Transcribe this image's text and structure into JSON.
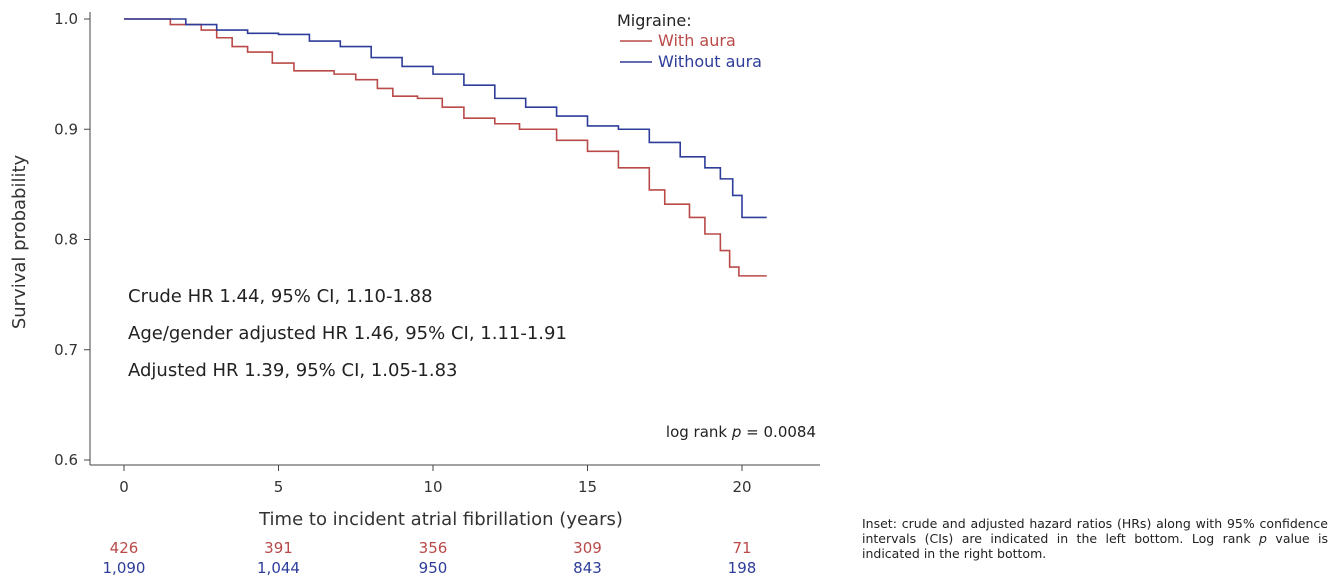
{
  "chart_data": {
    "type": "line",
    "xlabel": "Time to incident atrial fibrillation (years)",
    "ylabel": "Survival probability",
    "xlim": [
      -2.3,
      22.5
    ],
    "ylim": [
      0.6,
      1.0
    ],
    "x_ticks": [
      "0",
      "5",
      "10",
      "15",
      "20"
    ],
    "y_ticks": [
      "0.6",
      "0.7",
      "0.8",
      "0.9",
      "1.0"
    ],
    "legend": {
      "title": "Migraine:",
      "placement": "top-right"
    },
    "series": [
      {
        "name": "With aura",
        "color": "#b94a48",
        "points": [
          [
            0,
            1.0
          ],
          [
            1,
            1.0
          ],
          [
            1.5,
            0.995
          ],
          [
            2.5,
            0.99
          ],
          [
            3,
            0.983
          ],
          [
            3.5,
            0.975
          ],
          [
            4,
            0.97
          ],
          [
            4.8,
            0.96
          ],
          [
            5.5,
            0.953
          ],
          [
            6.8,
            0.95
          ],
          [
            7.5,
            0.945
          ],
          [
            8.2,
            0.937
          ],
          [
            8.7,
            0.93
          ],
          [
            9.5,
            0.928
          ],
          [
            10.3,
            0.92
          ],
          [
            11,
            0.91
          ],
          [
            12,
            0.905
          ],
          [
            12.8,
            0.9
          ],
          [
            14,
            0.89
          ],
          [
            15,
            0.88
          ],
          [
            16,
            0.865
          ],
          [
            17,
            0.845
          ],
          [
            17.5,
            0.832
          ],
          [
            18.3,
            0.82
          ],
          [
            18.8,
            0.805
          ],
          [
            19.3,
            0.79
          ],
          [
            19.6,
            0.775
          ],
          [
            19.9,
            0.767
          ],
          [
            20.8,
            0.767
          ]
        ]
      },
      {
        "name": "Without aura",
        "color": "#2e3d99",
        "points": [
          [
            0,
            1.0
          ],
          [
            1,
            1.0
          ],
          [
            2,
            0.995
          ],
          [
            3,
            0.99
          ],
          [
            4,
            0.987
          ],
          [
            5,
            0.986
          ],
          [
            6,
            0.98
          ],
          [
            7,
            0.975
          ],
          [
            8,
            0.965
          ],
          [
            9,
            0.957
          ],
          [
            10,
            0.95
          ],
          [
            11,
            0.94
          ],
          [
            12,
            0.928
          ],
          [
            13,
            0.92
          ],
          [
            14,
            0.912
          ],
          [
            15,
            0.903
          ],
          [
            16,
            0.9
          ],
          [
            17,
            0.888
          ],
          [
            18,
            0.875
          ],
          [
            18.8,
            0.865
          ],
          [
            19.3,
            0.855
          ],
          [
            19.7,
            0.84
          ],
          [
            20,
            0.82
          ],
          [
            20.8,
            0.82
          ]
        ]
      }
    ],
    "annotations": [
      "Crude HR 1.44, 95% CI, 1.10-1.88",
      "Age/gender adjusted HR 1.46, 95% CI, 1.11-1.91",
      "Adjusted HR 1.39, 95% CI, 1.05-1.83"
    ],
    "log_rank": {
      "prefix": "log rank ",
      "symbol": "p",
      "suffix": " = 0.0084"
    },
    "risk_table": {
      "times": [
        0,
        5,
        10,
        15,
        20
      ],
      "rows": [
        {
          "series": "With aura",
          "counts": [
            "426",
            "391",
            "356",
            "309",
            "71"
          ]
        },
        {
          "series": "Without aura",
          "counts": [
            "1,090",
            "1,044",
            "950",
            "843",
            "198"
          ]
        }
      ]
    }
  },
  "caption": {
    "part1": "Inset: crude and adjusted hazard ratios (HRs) along with 95% confidence intervals (CIs) are indicated in the left bottom. Log rank ",
    "italic": "p",
    "part2": " value is indicated in the right bottom."
  }
}
